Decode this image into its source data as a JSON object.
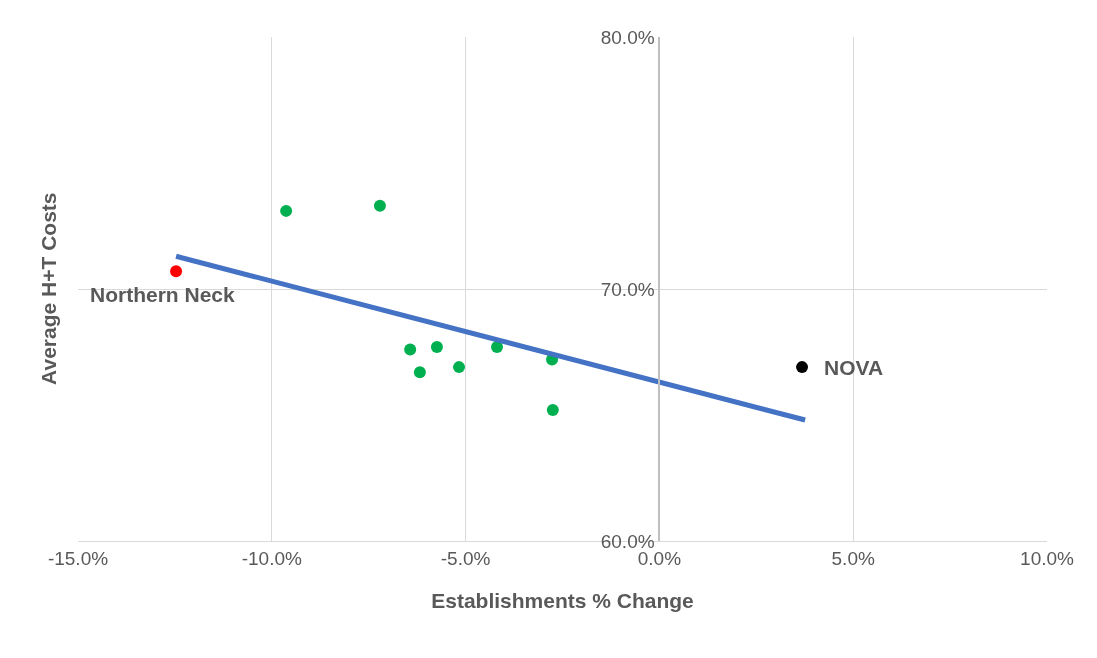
{
  "chart_data": {
    "type": "scatter",
    "xlabel": "Establishments % Change",
    "ylabel": "Average H+T Costs",
    "series": [
      {
        "marker": "circle",
        "color": "#00b050",
        "x": [
          -9.63,
          -7.21,
          -6.43,
          -5.74,
          -6.18,
          -5.17,
          -4.19,
          -2.77,
          -2.75
        ],
        "values": [
          73.1,
          73.3,
          67.6,
          67.7,
          66.7,
          66.9,
          67.7,
          67.2,
          65.2
        ]
      },
      {
        "marker": "circle",
        "color": "#ff0000",
        "x": [
          -12.47
        ],
        "values": [
          70.7
        ]
      },
      {
        "marker": "circle",
        "color": "#000000",
        "x": [
          3.68
        ],
        "values": [
          66.9
        ]
      },
      {
        "type": "line",
        "marker": "none",
        "color": "#4472c4",
        "x": [
          -12.47,
          3.76
        ],
        "values": [
          71.3,
          64.8
        ]
      }
    ],
    "annotations": [
      {
        "text": "Northern Neck",
        "x": -12.47,
        "y": 70.7
      },
      {
        "text": "NOVA",
        "x": 3.68,
        "y": 66.9
      }
    ],
    "xlim": [
      -15,
      10
    ],
    "xticks": [
      {
        "value": -15,
        "label": "-15.0%"
      },
      {
        "value": -10,
        "label": "-10.0%"
      },
      {
        "value": -5,
        "label": "-5.0%"
      },
      {
        "value": 0,
        "label": "0.0%"
      },
      {
        "value": 5,
        "label": "5.0%"
      },
      {
        "value": 10,
        "label": "10.0%"
      }
    ],
    "ylim": [
      60,
      80
    ],
    "yticks": [
      {
        "value": 60,
        "label": "60.0%"
      },
      {
        "value": 70,
        "label": "70.0%"
      },
      {
        "value": 80,
        "label": "80.0%"
      }
    ],
    "grid": true,
    "legend": false
  }
}
